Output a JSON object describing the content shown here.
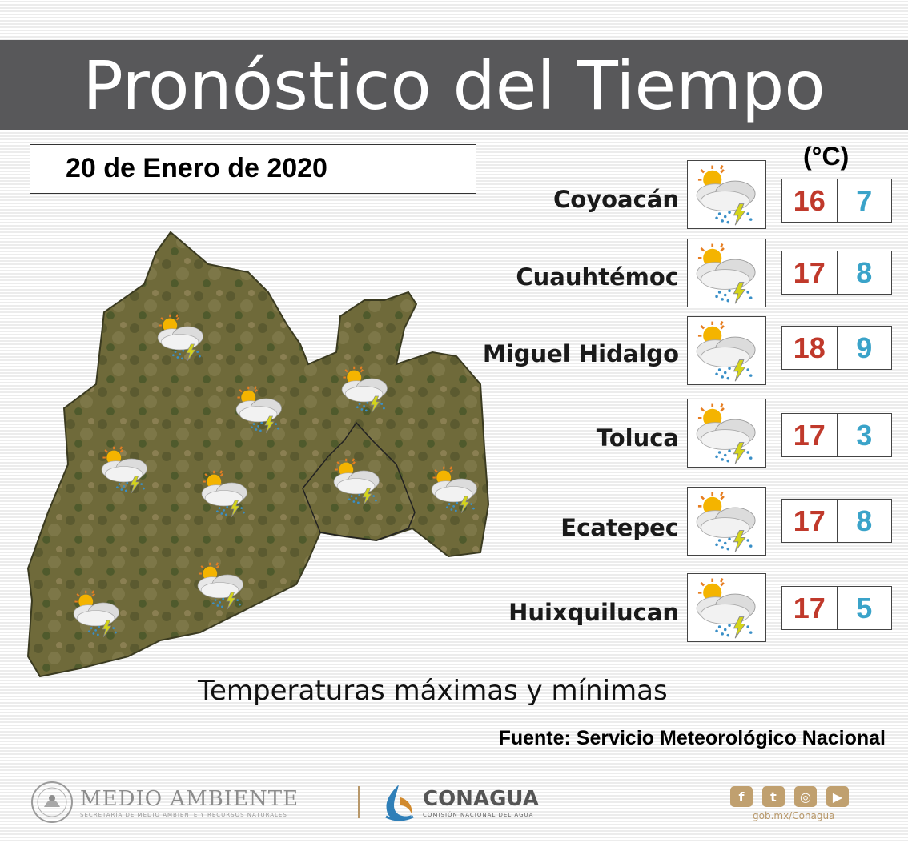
{
  "header": {
    "title": "Pronóstico del Tiempo"
  },
  "date": "20 de Enero de 2020",
  "unit_label": "(°C)",
  "colors": {
    "max": "#c0392b",
    "min": "#3aa3c9",
    "header_bg": "#58585a"
  },
  "forecast": [
    {
      "city": "Coyoacán",
      "max": "16",
      "min": "7",
      "icon": "sun-cloud-storm-icon"
    },
    {
      "city": "Cuauhtémoc",
      "max": "17",
      "min": "8",
      "icon": "sun-cloud-storm-icon"
    },
    {
      "city": "Miguel Hidalgo",
      "max": "18",
      "min": "9",
      "icon": "sun-cloud-storm-icon"
    },
    {
      "city": "Toluca",
      "max": "17",
      "min": "3",
      "icon": "sun-cloud-storm-icon"
    },
    {
      "city": "Ecatepec",
      "max": "17",
      "min": "8",
      "icon": "sun-cloud-storm-icon"
    },
    {
      "city": "Huixquilucan",
      "max": "17",
      "min": "5",
      "icon": "sun-cloud-storm-icon"
    }
  ],
  "caption": "Temperaturas máximas y mínimas",
  "source": "Fuente: Servicio Meteorológico Nacional",
  "footer": {
    "ma_title": "MEDIO AMBIENTE",
    "ma_subtitle": "SECRETARÍA DE MEDIO AMBIENTE Y RECURSOS NATURALES",
    "conagua_title": "CONAGUA",
    "conagua_subtitle": "COMISIÓN NACIONAL DEL AGUA",
    "social_icons": [
      "facebook-icon",
      "twitter-icon",
      "instagram-icon",
      "youtube-icon"
    ],
    "url": "gob.mx/Conagua"
  }
}
